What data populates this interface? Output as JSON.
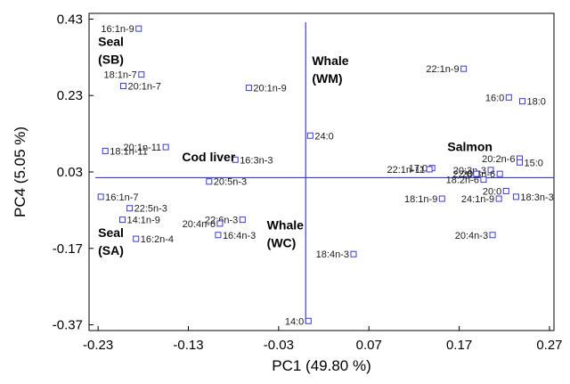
{
  "chart_data": {
    "type": "scatter",
    "xlabel": "PC1 (49.80 %)",
    "ylabel": "PC4 (5.05 %)",
    "xlim": [
      -0.24,
      0.275
    ],
    "ylim": [
      -0.385,
      0.445
    ],
    "x_ticks": [
      {
        "value": -0.23,
        "label": "-0.23"
      },
      {
        "value": -0.13,
        "label": "-0.13"
      },
      {
        "value": -0.03,
        "label": "-0.03"
      },
      {
        "value": 0.07,
        "label": "0.07"
      },
      {
        "value": 0.17,
        "label": "0.17"
      },
      {
        "value": 0.27,
        "label": "0.27"
      }
    ],
    "y_ticks": [
      {
        "value": 0.43,
        "label": "0.43"
      },
      {
        "value": 0.23,
        "label": "0.23"
      },
      {
        "value": 0.03,
        "label": "0.03"
      },
      {
        "value": -0.17,
        "label": "-0.17"
      },
      {
        "value": -0.37,
        "label": "-0.37"
      }
    ],
    "zero_lines": {
      "x": 0.0,
      "y": 0.015
    },
    "marker": "open-square",
    "colors": {
      "marker": "#3b3bdc",
      "reference_lines": "#3b3bdc",
      "frame": "#000000"
    },
    "grid": false,
    "legend": "none",
    "points": [
      {
        "label": "16:1n-9",
        "x": -0.185,
        "y": 0.405,
        "anchor": "end"
      },
      {
        "label": "18:1n-7",
        "x": -0.182,
        "y": 0.285,
        "anchor": "end"
      },
      {
        "label": "20:1n-7",
        "x": -0.202,
        "y": 0.255,
        "anchor": "start"
      },
      {
        "label": "20:1n-9",
        "x": -0.063,
        "y": 0.25,
        "anchor": "start"
      },
      {
        "label": "22:1n-9",
        "x": 0.175,
        "y": 0.3,
        "anchor": "end"
      },
      {
        "label": "16:0",
        "x": 0.225,
        "y": 0.225,
        "anchor": "end"
      },
      {
        "label": "18:0",
        "x": 0.24,
        "y": 0.215,
        "anchor": "start"
      },
      {
        "label": "24:0",
        "x": 0.005,
        "y": 0.125,
        "anchor": "start"
      },
      {
        "label": "20:1n-11",
        "x": -0.155,
        "y": 0.095,
        "anchor": "end"
      },
      {
        "label": "18:1n-11",
        "x": -0.222,
        "y": 0.085,
        "anchor": "start"
      },
      {
        "label": "16:3n-3",
        "x": -0.078,
        "y": 0.062,
        "anchor": "start"
      },
      {
        "label": "17:0",
        "x": 0.14,
        "y": 0.04,
        "anchor": "end"
      },
      {
        "label": "22:1n-11",
        "x": 0.137,
        "y": 0.037,
        "anchor": "end"
      },
      {
        "label": "20:2n-6",
        "x": 0.237,
        "y": 0.065,
        "anchor": "end"
      },
      {
        "label": "15:0",
        "x": 0.237,
        "y": 0.055,
        "anchor": "start"
      },
      {
        "label": "20:3n-3",
        "x": 0.205,
        "y": 0.035,
        "anchor": "end"
      },
      {
        "label": "20:3n-6",
        "x": 0.215,
        "y": 0.025,
        "anchor": "end"
      },
      {
        "label": "22:0",
        "x": 0.189,
        "y": 0.025,
        "anchor": "end"
      },
      {
        "label": "16:1n-7",
        "x": -0.227,
        "y": -0.035,
        "anchor": "start"
      },
      {
        "label": "20:5n-3",
        "x": -0.107,
        "y": 0.005,
        "anchor": "start"
      },
      {
        "label": "18:2n-6",
        "x": 0.197,
        "y": 0.01,
        "anchor": "end"
      },
      {
        "label": "20:0",
        "x": 0.222,
        "y": -0.02,
        "anchor": "end"
      },
      {
        "label": "18:3n-3",
        "x": 0.233,
        "y": -0.035,
        "anchor": "start"
      },
      {
        "label": "24:1n-9",
        "x": 0.214,
        "y": -0.04,
        "anchor": "end"
      },
      {
        "label": "18:1n-9",
        "x": 0.151,
        "y": -0.04,
        "anchor": "end"
      },
      {
        "label": "22:5n-3",
        "x": -0.195,
        "y": -0.065,
        "anchor": "start"
      },
      {
        "label": "14:1n-9",
        "x": -0.203,
        "y": -0.095,
        "anchor": "start"
      },
      {
        "label": "22:6n-3",
        "x": -0.07,
        "y": -0.095,
        "anchor": "end"
      },
      {
        "label": "20:4n-6",
        "x": -0.095,
        "y": -0.105,
        "anchor": "end"
      },
      {
        "label": "16:4n-3",
        "x": -0.097,
        "y": -0.135,
        "anchor": "start"
      },
      {
        "label": "20:4n-3",
        "x": 0.207,
        "y": -0.135,
        "anchor": "end"
      },
      {
        "label": "16:2n-4",
        "x": -0.188,
        "y": -0.145,
        "anchor": "start"
      },
      {
        "label": "18:4n-3",
        "x": 0.053,
        "y": -0.185,
        "anchor": "end"
      },
      {
        "label": "14:0",
        "x": 0.003,
        "y": -0.36,
        "anchor": "end"
      }
    ],
    "annotations": [
      {
        "lines": [
          "Seal",
          "(SB)"
        ],
        "x": -0.23,
        "y": 0.36
      },
      {
        "lines": [
          "Whale",
          "(WM)"
        ],
        "x": 0.007,
        "y": 0.31
      },
      {
        "lines": [
          "Cod liver"
        ],
        "x": -0.137,
        "y": 0.058
      },
      {
        "lines": [
          "Salmon"
        ],
        "x": 0.157,
        "y": 0.085
      },
      {
        "lines": [
          "Seal",
          "(SA)"
        ],
        "x": -0.23,
        "y": -0.14
      },
      {
        "lines": [
          "Whale",
          "(WC)"
        ],
        "x": -0.043,
        "y": -0.12
      }
    ]
  }
}
